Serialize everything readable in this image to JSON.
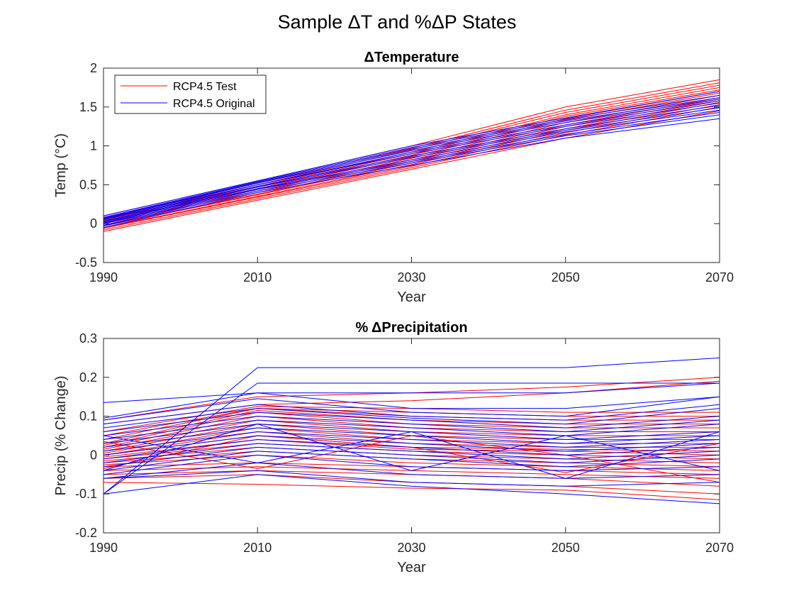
{
  "figure": {
    "title": "Sample ΔT and %ΔP States",
    "colors": {
      "test": "#ff0000",
      "original": "#0000ff",
      "axis": "#262626",
      "background": "#ffffff"
    }
  },
  "chart_data": [
    {
      "type": "line",
      "title": "ΔTemperature",
      "xlabel": "Year",
      "ylabel": "Temp (°C)",
      "xlim": [
        1990,
        2070
      ],
      "ylim": [
        -0.5,
        2
      ],
      "xticks": [
        1990,
        2010,
        2030,
        2050,
        2070
      ],
      "yticks": [
        -0.5,
        0,
        0.5,
        1,
        1.5,
        2
      ],
      "xtick_labels": [
        "1990",
        "2010",
        "2030",
        "2050",
        "2070"
      ],
      "ytick_labels": [
        "-0.5",
        "0",
        "0.5",
        "1",
        "1.5",
        "2"
      ],
      "grid": false,
      "legend": {
        "placement": "top-left",
        "entries": [
          "RCP4.5 Test",
          "RCP4.5 Original"
        ]
      },
      "x": [
        1990,
        2010,
        2030,
        2050,
        2070
      ],
      "series_groups": [
        {
          "name": "RCP4.5 Test",
          "color": "#ff0000",
          "lines": [
            [
              -0.1,
              0.3,
              0.7,
              1.1,
              1.45
            ],
            [
              -0.08,
              0.32,
              0.72,
              1.14,
              1.5
            ],
            [
              -0.06,
              0.34,
              0.74,
              1.17,
              1.53
            ],
            [
              -0.05,
              0.35,
              0.76,
              1.2,
              1.56
            ],
            [
              -0.03,
              0.37,
              0.78,
              1.22,
              1.58
            ],
            [
              -0.02,
              0.38,
              0.8,
              1.25,
              1.6
            ],
            [
              0.0,
              0.4,
              0.82,
              1.27,
              1.62
            ],
            [
              0.01,
              0.42,
              0.84,
              1.3,
              1.65
            ],
            [
              0.03,
              0.44,
              0.86,
              1.33,
              1.68
            ],
            [
              0.04,
              0.45,
              0.88,
              1.35,
              1.7
            ],
            [
              0.05,
              0.47,
              0.9,
              1.38,
              1.72
            ],
            [
              0.06,
              0.48,
              0.92,
              1.4,
              1.75
            ],
            [
              0.07,
              0.5,
              0.95,
              1.43,
              1.78
            ],
            [
              0.08,
              0.52,
              0.97,
              1.46,
              1.81
            ],
            [
              0.1,
              0.55,
              1.0,
              1.5,
              1.85
            ]
          ]
        },
        {
          "name": "RCP4.5 Original",
          "color": "#0000ff",
          "lines": [
            [
              -0.05,
              0.4,
              0.75,
              1.1,
              1.35
            ],
            [
              -0.03,
              0.42,
              0.78,
              1.13,
              1.4
            ],
            [
              -0.02,
              0.44,
              0.8,
              1.15,
              1.43
            ],
            [
              0.0,
              0.45,
              0.82,
              1.18,
              1.46
            ],
            [
              0.01,
              0.47,
              0.85,
              1.2,
              1.49
            ],
            [
              0.02,
              0.48,
              0.87,
              1.22,
              1.52
            ],
            [
              0.03,
              0.5,
              0.9,
              1.25,
              1.55
            ],
            [
              0.05,
              0.5,
              0.92,
              1.27,
              1.58
            ],
            [
              0.06,
              0.52,
              0.94,
              1.3,
              1.6
            ],
            [
              0.07,
              0.53,
              0.96,
              1.32,
              1.62
            ],
            [
              0.08,
              0.54,
              0.98,
              1.34,
              1.65
            ],
            [
              0.1,
              0.55,
              1.0,
              1.36,
              1.7
            ]
          ]
        }
      ]
    },
    {
      "type": "line",
      "title": "% ΔPrecipitation",
      "xlabel": "Year",
      "ylabel": "Precip (% Change)",
      "xlim": [
        1990,
        2070
      ],
      "ylim": [
        -0.2,
        0.3
      ],
      "xticks": [
        1990,
        2010,
        2030,
        2050,
        2070
      ],
      "yticks": [
        -0.2,
        -0.1,
        0,
        0.1,
        0.2,
        0.3
      ],
      "xtick_labels": [
        "1990",
        "2010",
        "2030",
        "2050",
        "2070"
      ],
      "ytick_labels": [
        "-0.2",
        "-0.1",
        "0",
        "0.1",
        "0.2",
        "0.3"
      ],
      "grid": false,
      "x": [
        1990,
        2010,
        2030,
        2050,
        2070
      ],
      "series_groups": [
        {
          "name": "RCP4.5 Test",
          "color": "#ff0000",
          "lines": [
            [
              -0.07,
              -0.075,
              -0.085,
              -0.09,
              -0.115
            ],
            [
              -0.06,
              -0.05,
              -0.07,
              -0.08,
              -0.1
            ],
            [
              -0.05,
              -0.04,
              -0.05,
              -0.06,
              -0.08
            ],
            [
              -0.04,
              -0.03,
              -0.04,
              -0.05,
              -0.06
            ],
            [
              -0.03,
              -0.02,
              -0.03,
              -0.04,
              -0.05
            ],
            [
              -0.025,
              0.0,
              -0.02,
              -0.03,
              -0.04
            ],
            [
              -0.02,
              0.01,
              -0.01,
              -0.02,
              -0.03
            ],
            [
              -0.015,
              0.02,
              0.0,
              -0.01,
              -0.02
            ],
            [
              -0.01,
              0.03,
              0.01,
              0.0,
              -0.01
            ],
            [
              -0.005,
              0.04,
              0.015,
              0.01,
              0.0
            ],
            [
              0.0,
              0.05,
              0.02,
              0.015,
              0.01
            ],
            [
              0.0,
              0.06,
              0.03,
              0.02,
              0.02
            ],
            [
              0.005,
              0.07,
              0.04,
              0.03,
              0.03
            ],
            [
              0.01,
              0.08,
              0.05,
              0.04,
              0.04
            ],
            [
              0.015,
              0.09,
              0.06,
              0.05,
              0.05
            ],
            [
              0.02,
              0.1,
              0.07,
              0.06,
              0.06
            ],
            [
              0.025,
              0.11,
              0.08,
              0.07,
              0.07
            ],
            [
              0.03,
              0.115,
              0.09,
              0.08,
              0.08
            ],
            [
              0.04,
              0.12,
              0.1,
              0.09,
              0.09
            ],
            [
              0.05,
              0.12,
              0.11,
              0.1,
              0.1
            ],
            [
              0.06,
              0.125,
              0.12,
              0.11,
              0.11
            ],
            [
              0.08,
              0.13,
              0.14,
              0.16,
              0.19
            ],
            [
              0.09,
              0.15,
              0.16,
              0.175,
              0.2
            ],
            [
              -0.035,
              0.05,
              0.02,
              -0.045,
              0.03
            ],
            [
              0.035,
              -0.035,
              0.05,
              0.0,
              -0.07
            ]
          ]
        },
        {
          "name": "RCP4.5 Original",
          "color": "#0000ff",
          "lines": [
            [
              -0.1,
              0.225,
              0.225,
              0.225,
              0.25
            ],
            [
              -0.1,
              0.185,
              0.185,
              0.185,
              0.185
            ],
            [
              0.135,
              0.16,
              0.16,
              0.16,
              0.185
            ],
            [
              0.095,
              0.16,
              0.12,
              0.12,
              0.15
            ],
            [
              0.09,
              0.145,
              0.11,
              0.1,
              0.15
            ],
            [
              0.08,
              0.13,
              0.1,
              0.09,
              0.13
            ],
            [
              0.07,
              0.12,
              0.095,
              0.08,
              0.12
            ],
            [
              0.06,
              0.11,
              0.09,
              0.07,
              0.1
            ],
            [
              0.05,
              0.1,
              0.08,
              0.06,
              0.09
            ],
            [
              0.04,
              0.09,
              0.07,
              0.05,
              0.08
            ],
            [
              0.03,
              0.08,
              0.06,
              0.04,
              0.06
            ],
            [
              0.02,
              0.07,
              0.05,
              0.03,
              0.05
            ],
            [
              0.01,
              0.06,
              0.04,
              0.02,
              0.04
            ],
            [
              0.0,
              0.05,
              0.03,
              0.01,
              0.03
            ],
            [
              -0.01,
              0.04,
              0.02,
              0.0,
              0.02
            ],
            [
              -0.02,
              0.03,
              0.01,
              -0.01,
              0.01
            ],
            [
              -0.03,
              0.02,
              0.0,
              -0.02,
              0.0
            ],
            [
              -0.04,
              0.01,
              -0.01,
              -0.03,
              -0.01
            ],
            [
              -0.05,
              0.0,
              -0.03,
              -0.04,
              -0.03
            ],
            [
              -0.06,
              -0.02,
              -0.05,
              -0.06,
              -0.05
            ],
            [
              -0.06,
              -0.04,
              -0.07,
              -0.08,
              -0.07
            ],
            [
              -0.1,
              -0.05,
              -0.08,
              -0.1,
              -0.125
            ],
            [
              0.05,
              -0.02,
              0.06,
              -0.06,
              0.06
            ],
            [
              -0.04,
              0.08,
              -0.04,
              0.05,
              -0.04
            ]
          ]
        }
      ]
    }
  ]
}
